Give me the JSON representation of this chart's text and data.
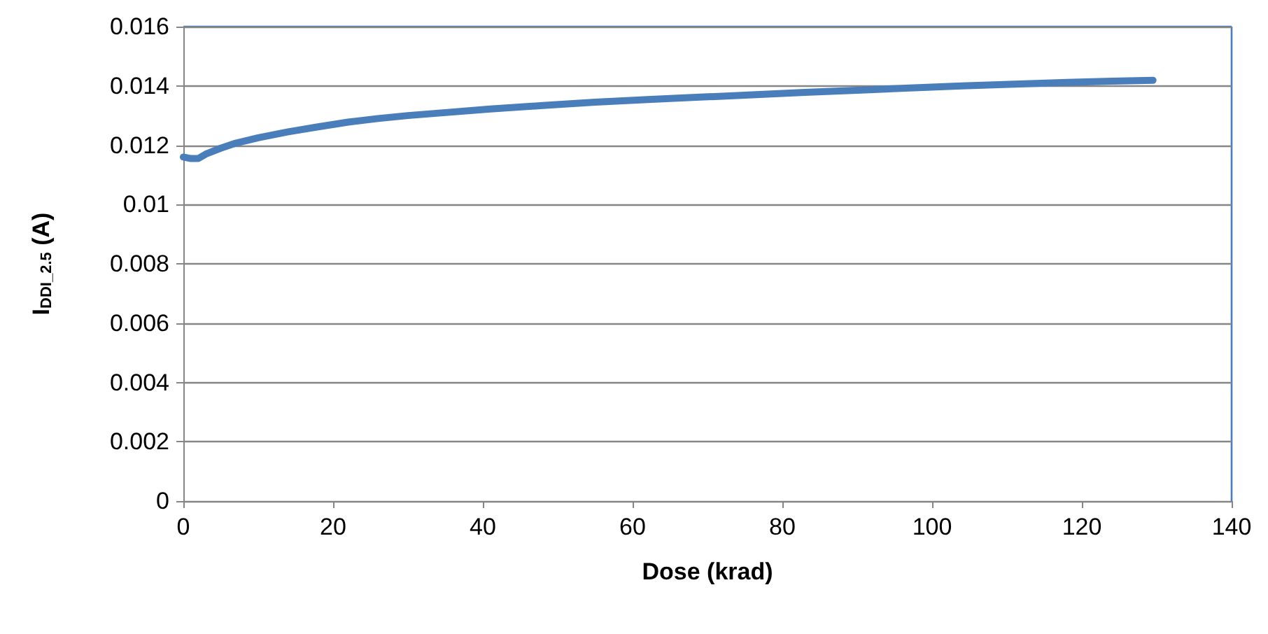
{
  "chart_data": {
    "type": "line",
    "xlabel": "Dose (krad)",
    "ylabel": "I$_{DDI_2.5}$ (A)",
    "x": [
      0,
      1,
      2,
      3,
      5,
      7,
      10,
      14,
      18,
      22,
      26,
      30,
      35,
      41,
      48,
      55,
      62,
      69,
      76,
      83,
      90,
      97,
      104,
      111,
      118,
      124,
      129.5
    ],
    "series": [
      {
        "color": "#4a7ebb",
        "values": [
          0.0116,
          0.01155,
          0.01155,
          0.0117,
          0.0119,
          0.01207,
          0.01225,
          0.01245,
          0.01262,
          0.01278,
          0.0129,
          0.013,
          0.0131,
          0.01322,
          0.01334,
          0.01345,
          0.01354,
          0.01362,
          0.0137,
          0.01378,
          0.01385,
          0.01393,
          0.014,
          0.01406,
          0.01412,
          0.01416,
          0.01419
        ]
      }
    ],
    "xlim": [
      0,
      140
    ],
    "xticks": [
      0,
      20,
      40,
      60,
      80,
      100,
      120,
      140
    ],
    "ylim": [
      0,
      0.016
    ],
    "yticks": [
      0,
      0.002,
      0.004,
      0.006,
      0.008,
      0.01,
      0.012,
      0.014,
      0.016
    ],
    "grid": "y",
    "marker": "none",
    "line_style": "solid"
  }
}
